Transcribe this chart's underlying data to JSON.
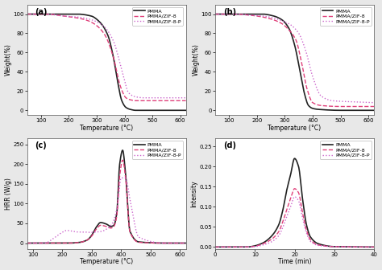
{
  "fig_bg": "#e8e8e8",
  "panel_labels": [
    "(a)",
    "(b)",
    "(c)",
    "(d)"
  ],
  "legend_labels": [
    "PMMA",
    "PMMA/ZIF-8",
    "PMMA/ZIF-8-P"
  ],
  "line_styles": [
    {
      "color": "#222222",
      "ls": "-",
      "lw": 1.2
    },
    {
      "color": "#e0407a",
      "ls": "--",
      "lw": 1.0
    },
    {
      "color": "#cc66cc",
      "ls": ":",
      "lw": 1.0
    }
  ],
  "panel_a": {
    "xlabel": "Temperature (°C)",
    "ylabel": "Weight(%)",
    "xlim": [
      50,
      620
    ],
    "ylim": [
      -5,
      110
    ],
    "xticks": [
      100,
      200,
      300,
      400,
      500,
      600
    ],
    "yticks": [
      0,
      20,
      40,
      60,
      80,
      100
    ],
    "curves": [
      {
        "x": [
          50,
          150,
          230,
          280,
          310,
          340,
          360,
          375,
          390,
          405,
          420,
          440,
          500,
          620
        ],
        "y": [
          100,
          100,
          100,
          98,
          92,
          78,
          55,
          30,
          10,
          3,
          1,
          0,
          0,
          0
        ]
      },
      {
        "x": [
          50,
          120,
          180,
          230,
          270,
          300,
          330,
          360,
          385,
          405,
          420,
          440,
          500,
          620
        ],
        "y": [
          100,
          100,
          98,
          96,
          93,
          88,
          78,
          55,
          25,
          13,
          11,
          10,
          10,
          10
        ]
      },
      {
        "x": [
          50,
          120,
          180,
          230,
          270,
          300,
          330,
          360,
          390,
          415,
          440,
          470,
          530,
          620
        ],
        "y": [
          100,
          100,
          98,
          97,
          95,
          92,
          86,
          72,
          42,
          18,
          14,
          13,
          13,
          13
        ]
      }
    ]
  },
  "panel_b": {
    "xlabel": "Temperature (°C)",
    "ylabel": "Weight(%)",
    "xlim": [
      50,
      620
    ],
    "ylim": [
      -5,
      110
    ],
    "xticks": [
      100,
      200,
      300,
      400,
      500,
      600
    ],
    "yticks": [
      0,
      20,
      40,
      60,
      80,
      100
    ],
    "curves": [
      {
        "x": [
          50,
          150,
          220,
          260,
          290,
          315,
          335,
          355,
          370,
          385,
          400,
          420,
          500,
          620
        ],
        "y": [
          100,
          100,
          100,
          98,
          94,
          85,
          68,
          40,
          18,
          5,
          2,
          1,
          0,
          0
        ]
      },
      {
        "x": [
          50,
          120,
          170,
          220,
          260,
          290,
          310,
          340,
          360,
          380,
          400,
          430,
          500,
          620
        ],
        "y": [
          100,
          100,
          99,
          97,
          94,
          90,
          85,
          73,
          50,
          22,
          8,
          5,
          4,
          4
        ]
      },
      {
        "x": [
          50,
          120,
          170,
          220,
          260,
          290,
          320,
          350,
          375,
          400,
          430,
          470,
          530,
          620
        ],
        "y": [
          100,
          100,
          99,
          98,
          96,
          93,
          89,
          80,
          62,
          35,
          15,
          10,
          9,
          8
        ]
      }
    ]
  },
  "panel_c": {
    "xlabel": "Temperature (°C)",
    "ylabel": "HRR (W/g)",
    "xlim": [
      80,
      620
    ],
    "ylim": [
      -15,
      265
    ],
    "xticks": [
      100,
      200,
      300,
      400,
      500,
      600
    ],
    "yticks": [
      0,
      50,
      100,
      150,
      200,
      250
    ],
    "curves": [
      {
        "x": [
          80,
          150,
          220,
          260,
          285,
          300,
          315,
          330,
          350,
          365,
          375,
          385,
          395,
          405,
          415,
          430,
          460,
          550,
          620
        ],
        "y": [
          0,
          0,
          0,
          2,
          8,
          20,
          40,
          52,
          48,
          42,
          45,
          75,
          200,
          235,
          175,
          30,
          3,
          0,
          0
        ]
      },
      {
        "x": [
          80,
          150,
          220,
          260,
          285,
          300,
          315,
          330,
          350,
          365,
          375,
          385,
          395,
          405,
          415,
          430,
          460,
          550,
          620
        ],
        "y": [
          0,
          0,
          0,
          2,
          8,
          18,
          35,
          45,
          42,
          38,
          42,
          68,
          170,
          210,
          165,
          28,
          2,
          0,
          0
        ]
      },
      {
        "x": [
          80,
          140,
          170,
          195,
          215,
          235,
          255,
          275,
          295,
          315,
          335,
          355,
          370,
          385,
          400,
          415,
          430,
          460,
          550,
          620
        ],
        "y": [
          0,
          0,
          12,
          25,
          32,
          30,
          28,
          28,
          27,
          28,
          30,
          38,
          50,
          85,
          165,
          165,
          110,
          15,
          0,
          0
        ]
      }
    ]
  },
  "panel_d": {
    "xlabel": "Time (min)",
    "ylabel": "Intensity",
    "xlim": [
      0,
      40
    ],
    "ylim": [
      -0.005,
      0.27
    ],
    "xticks": [
      0,
      10,
      20,
      30,
      40
    ],
    "yticks": [
      0.0,
      0.05,
      0.1,
      0.15,
      0.2,
      0.25
    ],
    "curves": [
      {
        "x": [
          0,
          5,
          8,
          10,
          12,
          14,
          16,
          17,
          18,
          19,
          20,
          21,
          22,
          23,
          24,
          26,
          30,
          40
        ],
        "y": [
          0,
          0,
          0,
          0.003,
          0.01,
          0.025,
          0.055,
          0.09,
          0.14,
          0.18,
          0.22,
          0.2,
          0.12,
          0.055,
          0.025,
          0.008,
          0.001,
          0
        ]
      },
      {
        "x": [
          0,
          5,
          8,
          10,
          12,
          14,
          16,
          17,
          18,
          19,
          20,
          21,
          22,
          23,
          24,
          26,
          30,
          40
        ],
        "y": [
          0,
          0,
          0,
          0.002,
          0.008,
          0.018,
          0.038,
          0.062,
          0.092,
          0.12,
          0.145,
          0.135,
          0.085,
          0.042,
          0.018,
          0.005,
          0.001,
          0
        ]
      },
      {
        "x": [
          0,
          5,
          8,
          10,
          12,
          14,
          16,
          17,
          18,
          19,
          20,
          21,
          22,
          23,
          24,
          26,
          30,
          40
        ],
        "y": [
          0,
          0,
          0,
          0.001,
          0.005,
          0.012,
          0.028,
          0.048,
          0.075,
          0.1,
          0.125,
          0.115,
          0.072,
          0.035,
          0.014,
          0.004,
          0.001,
          0
        ]
      }
    ]
  }
}
